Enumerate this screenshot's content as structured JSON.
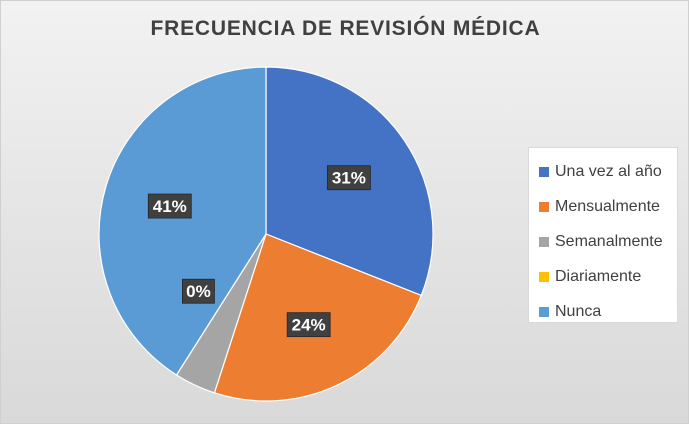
{
  "chart_data": {
    "type": "pie",
    "title": "FRECUENCIA DE REVISIÓN MÉDICA",
    "categories": [
      "Una vez al año",
      "Mensualmente",
      "Semanalmente",
      "Diariamente",
      "Nunca"
    ],
    "values": [
      31,
      24,
      4,
      0,
      41
    ],
    "data_labels": [
      "31%",
      "24%",
      "",
      "0%",
      "41%"
    ],
    "colors": [
      "#4472C4",
      "#ED7D31",
      "#A5A5A5",
      "#FFC000",
      "#5B9BD5"
    ],
    "legend_position": "right",
    "start_angle_deg": 0
  }
}
